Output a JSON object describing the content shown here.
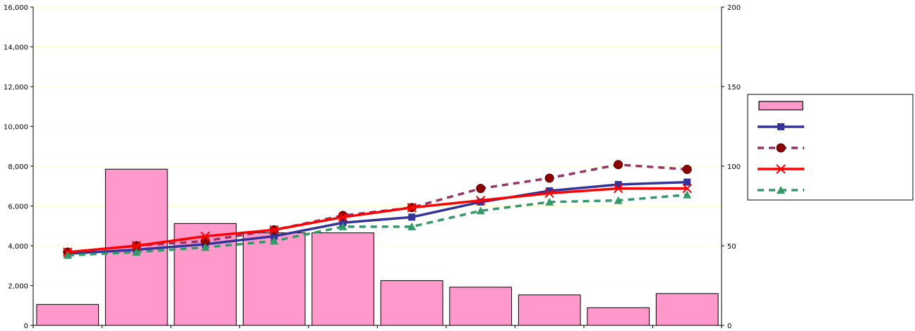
{
  "chart_data": {
    "type": "bar+line",
    "title": "",
    "xlabel": "",
    "ylabel": "",
    "y2label": "",
    "ylim": [
      0,
      16000
    ],
    "y2lim": [
      0,
      200
    ],
    "y_ticks": [
      "0",
      "2,000",
      "4,000",
      "6,000",
      "8,000",
      "10,000",
      "12,000",
      "14,000",
      "16,000"
    ],
    "y2_ticks": [
      "0",
      "50",
      "100",
      "150",
      "200"
    ],
    "categories": [
      "",
      "",
      "",
      "",
      "",
      "",
      "",
      "",
      "",
      ""
    ],
    "grid": true,
    "legend_position": "right",
    "bars": {
      "name": "",
      "axis": "left",
      "color": "#ff99cc",
      "values": [
        1050,
        7850,
        5120,
        4650,
        4650,
        2250,
        1920,
        1530,
        890,
        1600
      ]
    },
    "series": [
      {
        "name": "",
        "axis": "right",
        "color": "#333399",
        "dashed": false,
        "marker": "square",
        "values": [
          45,
          47.5,
          51,
          56,
          64.5,
          68,
          77.5,
          84.5,
          88.5,
          90
        ]
      },
      {
        "name": "",
        "axis": "right",
        "color": "#993366",
        "dashed": true,
        "marker": "circle",
        "values": [
          46,
          50,
          53,
          60,
          69,
          74,
          86,
          92.5,
          101,
          98
        ]
      },
      {
        "name": "",
        "axis": "right",
        "color": "#ff0000",
        "dashed": false,
        "marker": "x",
        "values": [
          46,
          50,
          56,
          60,
          68,
          74,
          78.5,
          83,
          86,
          86
        ]
      },
      {
        "name": "",
        "axis": "right",
        "color": "#339966",
        "dashed": true,
        "marker": "triangle",
        "values": [
          44,
          46,
          49,
          53,
          62,
          62,
          72,
          77.5,
          78.5,
          82
        ]
      }
    ]
  }
}
